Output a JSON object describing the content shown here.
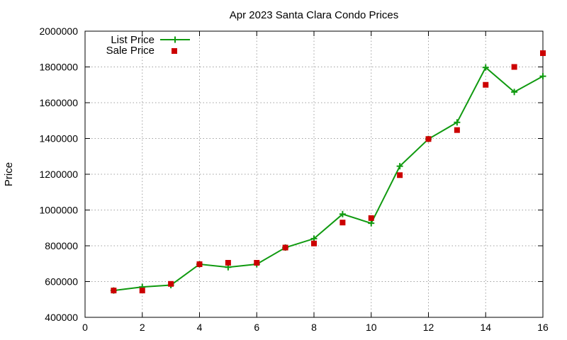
{
  "chart_data": {
    "type": "line",
    "title": "Apr 2023 Santa Clara Condo Prices",
    "xlabel": "",
    "ylabel": "Price",
    "xlim": [
      0,
      16
    ],
    "ylim": [
      400000,
      2000000
    ],
    "xticks": [
      0,
      2,
      4,
      6,
      8,
      10,
      12,
      14,
      16
    ],
    "yticks": [
      400000,
      600000,
      800000,
      1000000,
      1200000,
      1400000,
      1600000,
      1800000,
      2000000
    ],
    "grid": true,
    "legend_position": "top-left",
    "series": [
      {
        "name": "List Price",
        "style": "line-with-plus-markers",
        "color": "#109a10",
        "x": [
          1,
          2,
          3,
          4,
          5,
          6,
          7,
          8,
          9,
          10,
          11,
          12,
          13,
          14,
          15,
          16
        ],
        "y": [
          550000,
          570000,
          580000,
          697000,
          680000,
          697000,
          790000,
          840000,
          977000,
          926000,
          1245000,
          1397000,
          1490000,
          1797000,
          1660000,
          1748000
        ]
      },
      {
        "name": "Sale Price",
        "style": "square-markers",
        "color": "#cc0000",
        "x": [
          1,
          2,
          3,
          4,
          5,
          6,
          7,
          8,
          9,
          10,
          11,
          12,
          13,
          14,
          15,
          16
        ],
        "y": [
          550000,
          550000,
          587000,
          697000,
          705000,
          705000,
          790000,
          813000,
          930000,
          955000,
          1195000,
          1397000,
          1447000,
          1700000,
          1800000,
          1877000
        ]
      }
    ]
  }
}
